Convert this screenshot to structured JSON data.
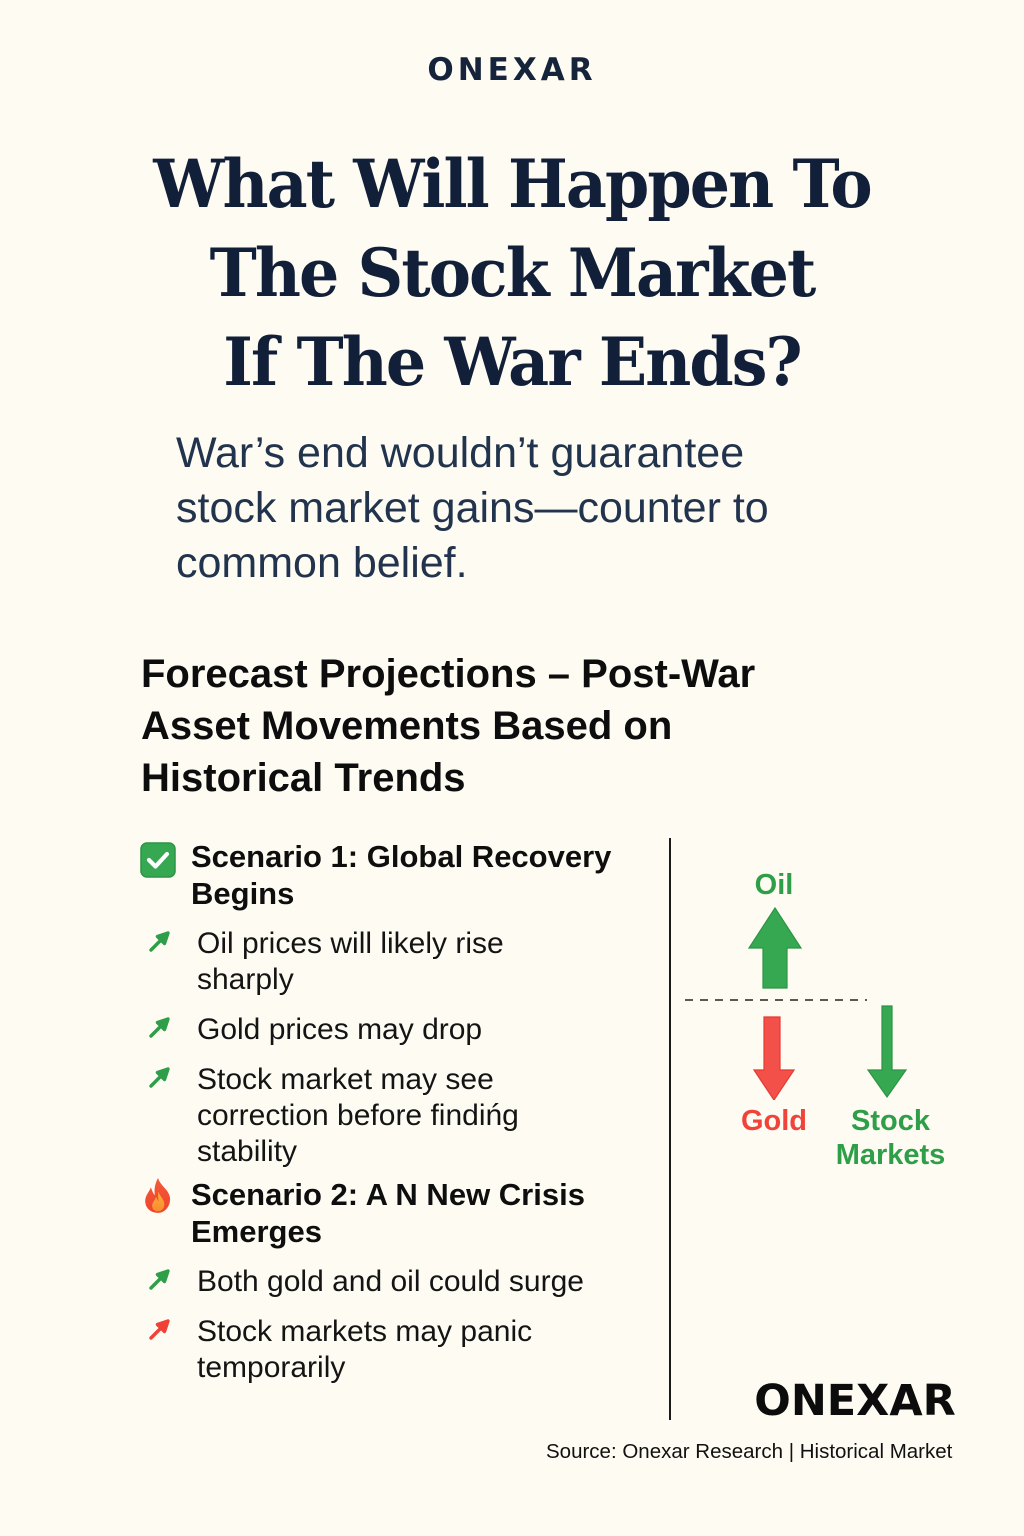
{
  "brand": {
    "top_logo": "ONEXAR",
    "bottom_logo": "ONEXAR"
  },
  "headline": {
    "lines": [
      "What Will Happen To",
      "The Stock Market",
      "If The War Ends?"
    ]
  },
  "subtitle": {
    "lines": [
      "War’s end wouldn’t guarantee",
      "stock market gains—counter to",
      "common belief."
    ]
  },
  "section": {
    "title_lines": [
      "Forecast Projections – Post-War",
      "Asset Movements Based on",
      "Historical Trends"
    ]
  },
  "scenarios": [
    {
      "icon": "check-box-icon",
      "title_lines": [
        "Scenario 1: Global Recovery",
        "Begins"
      ],
      "bullets": [
        {
          "icon": "arrow-up-right-icon",
          "color": "#2e9e48",
          "lines": [
            "Oil  prices will likely rise",
            "sharply"
          ]
        },
        {
          "icon": "arrow-up-right-icon",
          "color": "#2e9e48",
          "lines": [
            "Gold prices may drop"
          ]
        },
        {
          "icon": "arrow-up-right-icon",
          "color": "#2e9e48",
          "lines": [
            "Stock market may see",
            "correction before findińg",
            "stability"
          ]
        }
      ]
    },
    {
      "icon": "fire-icon",
      "title_lines": [
        "Scenario 2: A N New Crisis",
        "Emerges"
      ],
      "bullets": [
        {
          "icon": "arrow-up-right-icon",
          "color": "#2e9e48",
          "lines": [
            "Both gold and oil could surge"
          ]
        },
        {
          "icon": "arrow-up-right-icon",
          "color": "#ef4136",
          "lines": [
            "Stock markets may panic",
            "temporarily"
          ]
        }
      ]
    }
  ],
  "diagram": {
    "assets": [
      {
        "label": "Oil",
        "direction": "up",
        "color": "#2e9e48"
      },
      {
        "label": "Gold",
        "direction": "down",
        "color": "#f0443a"
      },
      {
        "label_lines": [
          "Stock",
          "Markets"
        ],
        "direction": "down",
        "color": "#2e9e48"
      }
    ]
  },
  "colors": {
    "background": "#fdfbf2",
    "navy": "#121f38",
    "green": "#2e9e48",
    "red": "#f0443a"
  },
  "footer": {
    "source": "Source: Onexar Research | Historical Market"
  }
}
